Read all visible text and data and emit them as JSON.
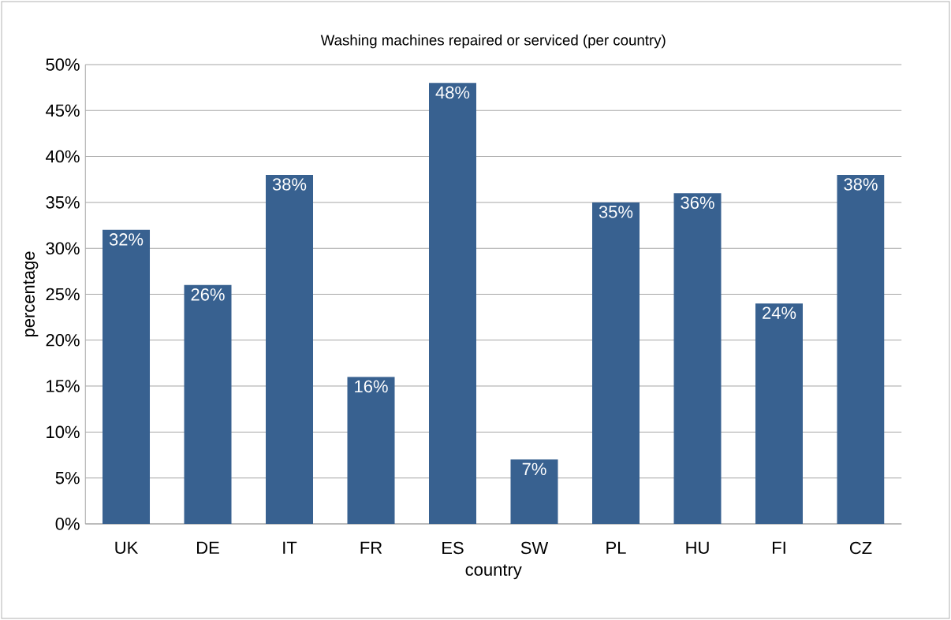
{
  "chart_data": {
    "type": "bar",
    "title": "Washing machines repaired or serviced (per country)",
    "xlabel": "country",
    "ylabel": "percentage",
    "categories": [
      "UK",
      "DE",
      "IT",
      "FR",
      "ES",
      "SW",
      "PL",
      "HU",
      "FI",
      "CZ"
    ],
    "values": [
      32,
      26,
      38,
      16,
      48,
      7,
      35,
      36,
      24,
      38
    ],
    "value_labels": [
      "32%",
      "26%",
      "38%",
      "16%",
      "48%",
      "7%",
      "35%",
      "36%",
      "24%",
      "38%"
    ],
    "color": "#386190",
    "ylim": [
      0,
      50
    ],
    "yticks": [
      {
        "value": 0,
        "label": "0%"
      },
      {
        "value": 5,
        "label": "5%"
      },
      {
        "value": 10,
        "label": "10%"
      },
      {
        "value": 15,
        "label": "15%"
      },
      {
        "value": 20,
        "label": "20%"
      },
      {
        "value": 25,
        "label": "25%"
      },
      {
        "value": 30,
        "label": "30%"
      },
      {
        "value": 35,
        "label": "35%"
      },
      {
        "value": 40,
        "label": "40%"
      },
      {
        "value": 45,
        "label": "45%"
      },
      {
        "value": 50,
        "label": "50%"
      }
    ],
    "grid": "y"
  }
}
